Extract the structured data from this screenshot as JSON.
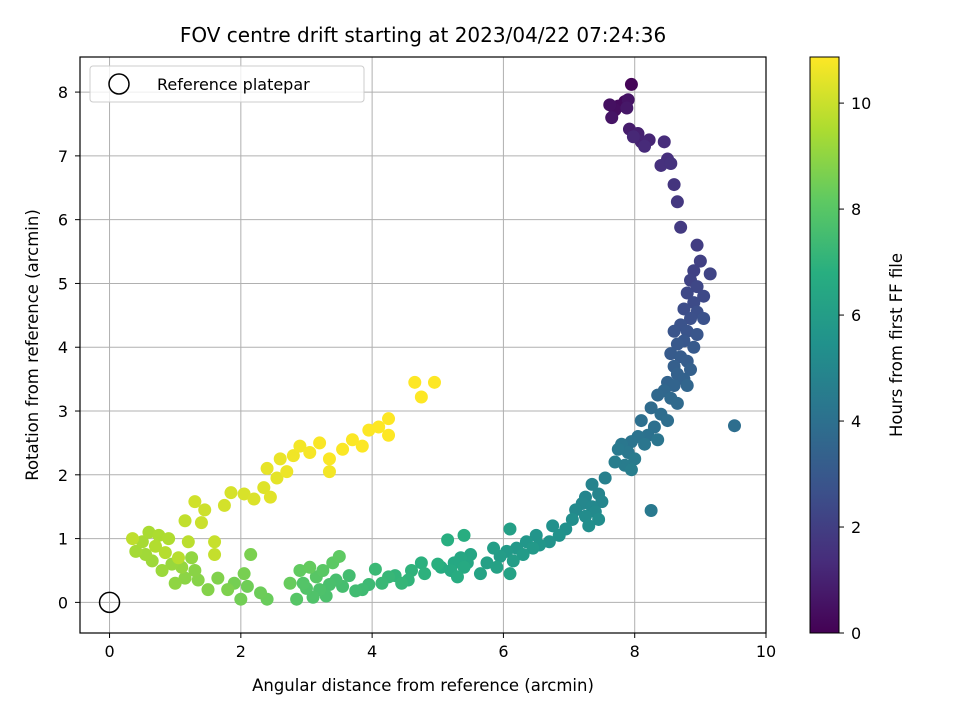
{
  "chart_data": {
    "type": "scatter",
    "title": "FOV centre drift starting at 2023/04/22 07:24:36",
    "xlabel": "Angular distance from reference (arcmin)",
    "ylabel": "Rotation from reference (arcmin)",
    "colorbar_label": "Hours from first FF file",
    "xlim": [
      -0.45,
      10.0
    ],
    "ylim": [
      -0.48,
      8.55
    ],
    "xticks": [
      0,
      2,
      4,
      6,
      8,
      10
    ],
    "yticks": [
      0,
      1,
      2,
      3,
      4,
      5,
      6,
      7,
      8
    ],
    "colorbar_range": [
      0,
      10.87
    ],
    "colorbar_ticks": [
      0,
      2,
      4,
      6,
      8,
      10
    ],
    "grid": true,
    "legend": {
      "placement": "top-left",
      "entries": [
        "Reference platepar"
      ]
    },
    "colormap": "viridis",
    "reference_point": {
      "x": 0,
      "y": 0
    },
    "points": [
      [
        7.95,
        8.12,
        0.1
      ],
      [
        7.85,
        7.85,
        0.2
      ],
      [
        7.75,
        7.78,
        0.3
      ],
      [
        7.7,
        7.72,
        0.4
      ],
      [
        7.62,
        7.8,
        0.45
      ],
      [
        7.9,
        7.88,
        0.55
      ],
      [
        7.65,
        7.6,
        0.6
      ],
      [
        7.88,
        7.75,
        0.7
      ],
      [
        7.92,
        7.42,
        0.85
      ],
      [
        8.05,
        7.35,
        0.95
      ],
      [
        8.1,
        7.22,
        1.05
      ],
      [
        8.22,
        7.25,
        1.1
      ],
      [
        7.98,
        7.3,
        1.2
      ],
      [
        8.15,
        7.15,
        1.3
      ],
      [
        8.45,
        7.22,
        1.35
      ],
      [
        8.5,
        6.95,
        1.45
      ],
      [
        8.4,
        6.85,
        1.5
      ],
      [
        8.55,
        6.88,
        1.55
      ],
      [
        8.6,
        6.55,
        1.65
      ],
      [
        8.65,
        6.28,
        1.75
      ],
      [
        8.7,
        5.88,
        1.85
      ],
      [
        8.95,
        5.6,
        1.95
      ],
      [
        9.0,
        5.35,
        2.05
      ],
      [
        8.9,
        5.2,
        2.1
      ],
      [
        8.85,
        5.05,
        2.15
      ],
      [
        9.15,
        5.15,
        2.2
      ],
      [
        8.95,
        4.95,
        2.3
      ],
      [
        8.8,
        4.85,
        2.35
      ],
      [
        9.05,
        4.8,
        2.4
      ],
      [
        8.9,
        4.7,
        2.45
      ],
      [
        8.75,
        4.6,
        2.55
      ],
      [
        8.95,
        4.55,
        2.6
      ],
      [
        8.85,
        4.45,
        2.65
      ],
      [
        9.05,
        4.45,
        2.7
      ],
      [
        8.7,
        4.35,
        2.75
      ],
      [
        8.8,
        4.25,
        2.8
      ],
      [
        8.6,
        4.25,
        2.85
      ],
      [
        8.95,
        4.2,
        2.9
      ],
      [
        8.75,
        4.1,
        2.95
      ],
      [
        8.65,
        4.05,
        3.0
      ],
      [
        8.9,
        4.0,
        3.05
      ],
      [
        8.55,
        3.9,
        3.1
      ],
      [
        8.7,
        3.85,
        3.15
      ],
      [
        8.8,
        3.78,
        3.2
      ],
      [
        8.6,
        3.7,
        3.25
      ],
      [
        8.85,
        3.65,
        3.3
      ],
      [
        8.65,
        3.58,
        3.35
      ],
      [
        8.75,
        3.5,
        3.4
      ],
      [
        8.5,
        3.45,
        3.45
      ],
      [
        8.6,
        3.4,
        3.5
      ],
      [
        8.8,
        3.4,
        3.55
      ],
      [
        8.45,
        3.32,
        3.6
      ],
      [
        8.35,
        3.25,
        3.65
      ],
      [
        8.55,
        3.2,
        3.7
      ],
      [
        8.65,
        3.12,
        3.75
      ],
      [
        8.25,
        3.05,
        3.8
      ],
      [
        8.4,
        2.95,
        3.85
      ],
      [
        8.5,
        2.85,
        3.9
      ],
      [
        8.1,
        2.85,
        3.95
      ],
      [
        8.3,
        2.75,
        4.0
      ],
      [
        8.2,
        2.62,
        4.05
      ],
      [
        8.05,
        2.6,
        4.1
      ],
      [
        7.95,
        2.52,
        4.15
      ],
      [
        8.35,
        2.55,
        4.2
      ],
      [
        8.15,
        2.48,
        4.25
      ],
      [
        7.8,
        2.48,
        4.3
      ],
      [
        7.9,
        2.35,
        4.35
      ],
      [
        7.75,
        2.4,
        4.4
      ],
      [
        8.0,
        2.25,
        4.45
      ],
      [
        7.85,
        2.15,
        4.5
      ],
      [
        7.7,
        2.2,
        4.55
      ],
      [
        7.95,
        2.08,
        4.6
      ],
      [
        9.52,
        2.77,
        3.9
      ],
      [
        8.25,
        1.44,
        4.4
      ],
      [
        7.55,
        1.95,
        4.7
      ],
      [
        7.35,
        1.85,
        4.8
      ],
      [
        7.45,
        1.7,
        4.85
      ],
      [
        7.25,
        1.65,
        4.9
      ],
      [
        7.5,
        1.58,
        4.95
      ],
      [
        7.2,
        1.55,
        5.0
      ],
      [
        7.35,
        1.5,
        5.05
      ],
      [
        7.1,
        1.45,
        5.1
      ],
      [
        7.4,
        1.42,
        5.15
      ],
      [
        7.25,
        1.35,
        5.2
      ],
      [
        7.45,
        1.3,
        5.25
      ],
      [
        7.05,
        1.3,
        5.3
      ],
      [
        7.3,
        1.2,
        5.35
      ],
      [
        6.95,
        1.15,
        5.4
      ],
      [
        6.75,
        1.2,
        5.45
      ],
      [
        6.85,
        1.05,
        5.5
      ],
      [
        6.7,
        0.95,
        5.55
      ],
      [
        6.5,
        1.05,
        5.6
      ],
      [
        6.55,
        0.9,
        5.65
      ],
      [
        6.35,
        0.95,
        5.7
      ],
      [
        6.2,
        0.85,
        5.75
      ],
      [
        6.45,
        0.85,
        5.8
      ],
      [
        6.05,
        0.8,
        5.85
      ],
      [
        6.3,
        0.75,
        5.9
      ],
      [
        5.95,
        0.72,
        5.95
      ],
      [
        6.15,
        0.65,
        6.0
      ],
      [
        5.85,
        0.85,
        6.05
      ],
      [
        6.1,
        1.15,
        6.1
      ],
      [
        5.75,
        0.62,
        6.15
      ],
      [
        5.9,
        0.55,
        6.2
      ],
      [
        6.1,
        0.45,
        6.25
      ],
      [
        5.65,
        0.45,
        6.3
      ],
      [
        5.5,
        0.75,
        6.35
      ],
      [
        5.45,
        0.62,
        6.4
      ],
      [
        5.35,
        0.7,
        6.45
      ],
      [
        5.25,
        0.62,
        6.5
      ],
      [
        5.4,
        0.55,
        6.55
      ],
      [
        5.2,
        0.5,
        6.6
      ],
      [
        5.05,
        0.55,
        6.65
      ],
      [
        5.3,
        0.4,
        6.7
      ],
      [
        5.4,
        1.05,
        6.75
      ],
      [
        5.15,
        0.98,
        6.8
      ],
      [
        5.0,
        0.6,
        6.85
      ],
      [
        4.75,
        0.62,
        6.9
      ],
      [
        4.8,
        0.45,
        6.95
      ],
      [
        4.6,
        0.5,
        7.0
      ],
      [
        4.55,
        0.35,
        7.05
      ],
      [
        4.35,
        0.42,
        7.1
      ],
      [
        4.45,
        0.3,
        7.15
      ],
      [
        4.25,
        0.4,
        7.2
      ],
      [
        4.15,
        0.3,
        7.25
      ],
      [
        4.05,
        0.52,
        7.3
      ],
      [
        3.95,
        0.28,
        7.35
      ],
      [
        3.85,
        0.2,
        7.4
      ],
      [
        3.75,
        0.18,
        7.45
      ],
      [
        3.65,
        0.42,
        7.5
      ],
      [
        3.55,
        0.25,
        7.55
      ],
      [
        3.45,
        0.35,
        7.6
      ],
      [
        3.35,
        0.28,
        7.65
      ],
      [
        3.3,
        0.1,
        7.7
      ],
      [
        3.2,
        0.2,
        7.75
      ],
      [
        3.1,
        0.08,
        7.8
      ],
      [
        3.0,
        0.22,
        7.85
      ],
      [
        2.95,
        0.3,
        7.9
      ],
      [
        2.85,
        0.05,
        7.95
      ],
      [
        3.15,
        0.4,
        8.0
      ],
      [
        3.25,
        0.5,
        8.05
      ],
      [
        3.4,
        0.62,
        8.1
      ],
      [
        3.5,
        0.72,
        8.15
      ],
      [
        2.9,
        0.5,
        8.2
      ],
      [
        3.05,
        0.55,
        8.25
      ],
      [
        2.75,
        0.3,
        8.3
      ],
      [
        2.4,
        0.05,
        8.35
      ],
      [
        2.3,
        0.15,
        8.4
      ],
      [
        2.1,
        0.25,
        8.45
      ],
      [
        2.0,
        0.05,
        8.5
      ],
      [
        1.9,
        0.3,
        8.55
      ],
      [
        2.05,
        0.45,
        8.6
      ],
      [
        2.15,
        0.75,
        8.65
      ],
      [
        1.8,
        0.2,
        8.7
      ],
      [
        1.65,
        0.38,
        8.75
      ],
      [
        1.5,
        0.2,
        8.8
      ],
      [
        1.35,
        0.35,
        8.85
      ],
      [
        1.3,
        0.5,
        8.9
      ],
      [
        1.15,
        0.38,
        8.95
      ],
      [
        1.0,
        0.3,
        9.0
      ],
      [
        1.25,
        0.7,
        9.05
      ],
      [
        1.1,
        0.55,
        9.1
      ],
      [
        0.95,
        0.6,
        9.15
      ],
      [
        0.8,
        0.5,
        9.2
      ],
      [
        0.65,
        0.65,
        9.25
      ],
      [
        0.55,
        0.75,
        9.3
      ],
      [
        0.4,
        0.8,
        9.35
      ],
      [
        0.5,
        0.95,
        9.4
      ],
      [
        0.6,
        1.1,
        9.45
      ],
      [
        0.75,
        1.05,
        9.5
      ],
      [
        0.9,
        1.0,
        9.55
      ],
      [
        0.7,
        0.88,
        9.6
      ],
      [
        0.85,
        0.78,
        9.65
      ],
      [
        1.05,
        0.7,
        9.7
      ],
      [
        1.2,
        0.95,
        9.75
      ],
      [
        0.35,
        1.0,
        9.8
      ],
      [
        1.15,
        1.28,
        9.85
      ],
      [
        1.6,
        0.75,
        9.9
      ],
      [
        1.6,
        0.95,
        9.95
      ],
      [
        1.4,
        1.25,
        10.0
      ],
      [
        1.45,
        1.45,
        10.05
      ],
      [
        1.3,
        1.58,
        10.1
      ],
      [
        1.75,
        1.52,
        10.15
      ],
      [
        1.85,
        1.72,
        10.2
      ],
      [
        2.05,
        1.7,
        10.25
      ],
      [
        2.2,
        1.62,
        10.3
      ],
      [
        2.35,
        1.8,
        10.35
      ],
      [
        2.45,
        1.65,
        10.4
      ],
      [
        2.55,
        1.95,
        10.45
      ],
      [
        2.4,
        2.1,
        10.5
      ],
      [
        2.6,
        2.25,
        10.55
      ],
      [
        2.7,
        2.05,
        10.6
      ],
      [
        2.8,
        2.3,
        10.65
      ],
      [
        2.9,
        2.45,
        10.7
      ],
      [
        3.05,
        2.35,
        10.75
      ],
      [
        3.2,
        2.5,
        10.8
      ],
      [
        3.35,
        2.25,
        10.82
      ],
      [
        3.55,
        2.4,
        10.82
      ],
      [
        3.7,
        2.55,
        10.84
      ],
      [
        3.85,
        2.45,
        10.85
      ],
      [
        3.95,
        2.7,
        10.86
      ],
      [
        4.1,
        2.75,
        10.87
      ],
      [
        4.25,
        2.88,
        10.87
      ],
      [
        4.25,
        2.62,
        10.87
      ],
      [
        3.35,
        2.05,
        10.7
      ],
      [
        4.65,
        3.45,
        10.87
      ],
      [
        4.75,
        3.22,
        10.87
      ],
      [
        4.95,
        3.45,
        10.87
      ]
    ]
  }
}
